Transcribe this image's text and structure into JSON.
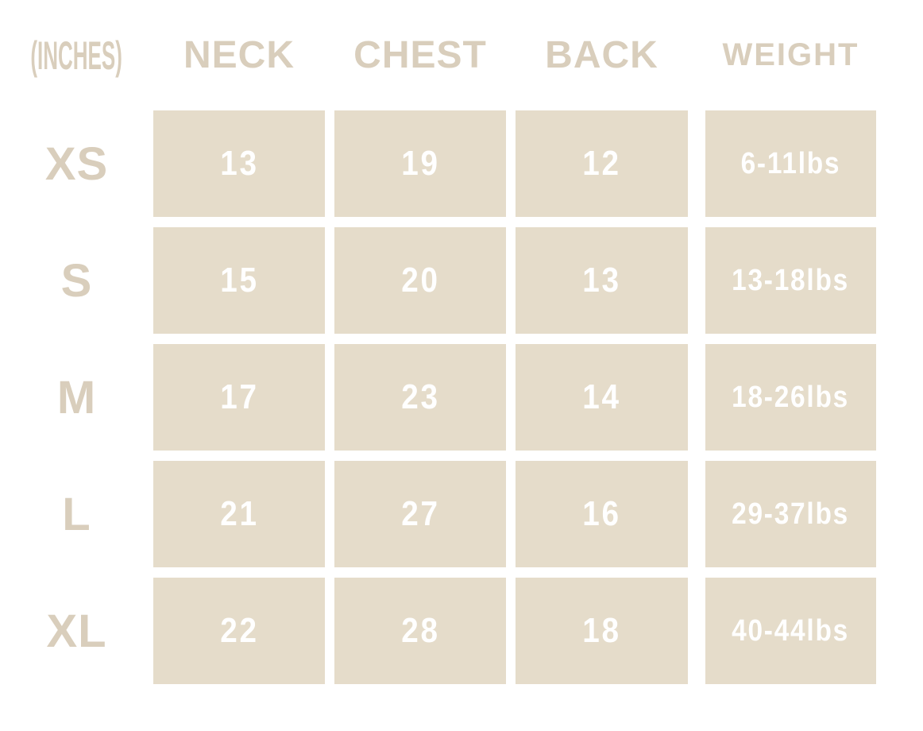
{
  "chart_data": {
    "type": "table",
    "unit_label": "(INCHES)",
    "columns": [
      "NECK",
      "CHEST",
      "BACK",
      "WEIGHT"
    ],
    "rows": [
      {
        "size": "XS",
        "neck": "13",
        "chest": "19",
        "back": "12",
        "weight": "6-11lbs"
      },
      {
        "size": "S",
        "neck": "15",
        "chest": "20",
        "back": "13",
        "weight": "13-18lbs"
      },
      {
        "size": "M",
        "neck": "17",
        "chest": "23",
        "back": "14",
        "weight": "18-26lbs"
      },
      {
        "size": "L",
        "neck": "21",
        "chest": "27",
        "back": "16",
        "weight": "29-37lbs"
      },
      {
        "size": "XL",
        "neck": "22",
        "chest": "28",
        "back": "18",
        "weight": "40-44lbs"
      }
    ],
    "colors": {
      "background": "#ffffff",
      "cell_background": "#e5dcca",
      "header_text": "#d9cebc",
      "cell_text": "#ffffff"
    },
    "layout": {
      "legend": "none",
      "grid": "blocks-with-white-gutters"
    }
  }
}
